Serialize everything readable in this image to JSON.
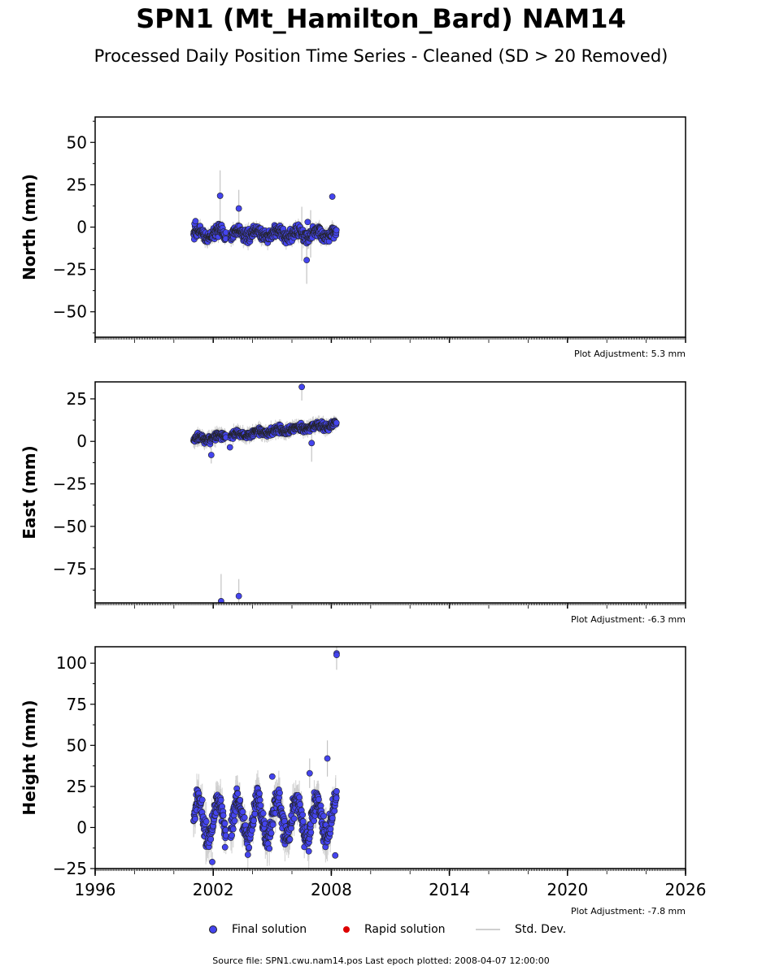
{
  "title": "SPN1 (Mt_Hamilton_Bard) NAM14",
  "subtitle": "Processed Daily Position Time Series - Cleaned (SD > 20 Removed)",
  "legend": {
    "final": "Final solution",
    "rapid": "Rapid solution",
    "std": "Std. Dev."
  },
  "footer": "Source file: SPN1.cwu.nam14.pos  Last epoch plotted: 2008-04-07 12:00:00",
  "colors": {
    "final": "#4444ee",
    "rapid": "#dd0000",
    "std": "#cfcfcf",
    "marker_edge": "#222222"
  },
  "chart_data": [
    {
      "type": "scatter",
      "ylabel": "North (mm)",
      "xlim": [
        1996,
        2026
      ],
      "ylim": [
        -65,
        65
      ],
      "yticks": [
        -50,
        -25,
        0,
        25,
        50
      ],
      "adjustment": "Plot Adjustment: 5.3 mm",
      "series": [
        {
          "name": "Final solution",
          "trend": {
            "start": [
              2001.0,
              -4
            ],
            "end": [
              2008.27,
              -4
            ],
            "seasonal_amp": 2,
            "noise": 2.5,
            "sd": 3
          }
        },
        {
          "name": "outliers",
          "points": [
            [
              2002.35,
              18.5
            ],
            [
              2003.3,
              11
            ],
            [
              2006.75,
              -19.5
            ],
            [
              2006.8,
              3
            ],
            [
              2008.05,
              18
            ],
            [
              2001.05,
              2
            ],
            [
              2001.1,
              3.5
            ]
          ]
        }
      ],
      "error_bars": [
        [
          2002.35,
          18.5,
          15
        ],
        [
          2003.3,
          11,
          11
        ],
        [
          2006.75,
          -19.5,
          14
        ],
        [
          2006.5,
          -4,
          16
        ],
        [
          2006.95,
          -4,
          14
        ]
      ]
    },
    {
      "type": "scatter",
      "ylabel": "East (mm)",
      "xlim": [
        1996,
        2026
      ],
      "ylim": [
        -95,
        35
      ],
      "yticks": [
        -75,
        -50,
        -25,
        0,
        25
      ],
      "adjustment": "Plot Adjustment: -6.3 mm",
      "series": [
        {
          "name": "Final solution",
          "trend": {
            "start": [
              2001.0,
              1
            ],
            "end": [
              2008.27,
              10
            ],
            "seasonal_amp": 1,
            "noise": 1.5,
            "sd": 3
          }
        },
        {
          "name": "outliers",
          "points": [
            [
              2006.5,
              32
            ],
            [
              2001.9,
              -8
            ],
            [
              2002.4,
              -94
            ],
            [
              2003.3,
              -91
            ],
            [
              2007.0,
              -1
            ],
            [
              2002.85,
              -3.5
            ]
          ]
        }
      ],
      "error_bars": [
        [
          2006.5,
          32,
          8
        ],
        [
          2002.4,
          -94,
          16
        ],
        [
          2003.3,
          -91,
          10
        ],
        [
          2007.0,
          -1,
          11
        ],
        [
          2001.9,
          -8,
          5
        ]
      ]
    },
    {
      "type": "scatter",
      "ylabel": "Height (mm)",
      "xlim": [
        1996,
        2026
      ],
      "ylim": [
        -25,
        110
      ],
      "yticks": [
        -25,
        0,
        25,
        50,
        75,
        100
      ],
      "xticks": [
        1996,
        2002,
        2008,
        2014,
        2020,
        2026
      ],
      "adjustment": "Plot Adjustment: -7.8 mm",
      "series": [
        {
          "name": "Final solution",
          "trend": {
            "start": [
              2001.0,
              5
            ],
            "end": [
              2008.27,
              5
            ],
            "seasonal_amp": 12,
            "noise": 5,
            "sd": 8
          }
        },
        {
          "name": "outliers",
          "points": [
            [
              2008.27,
              106
            ],
            [
              2008.27,
              105
            ],
            [
              2007.8,
              42
            ],
            [
              2006.9,
              33
            ],
            [
              2005.0,
              31
            ],
            [
              2001.95,
              -21
            ],
            [
              2002.6,
              -12
            ],
            [
              2008.2,
              -17
            ],
            [
              2008.27,
              22
            ]
          ]
        }
      ],
      "error_bars": [
        [
          2008.27,
          106,
          10
        ],
        [
          2007.8,
          42,
          11
        ],
        [
          2006.9,
          33,
          9
        ],
        [
          2001.95,
          -21,
          6
        ]
      ]
    }
  ]
}
